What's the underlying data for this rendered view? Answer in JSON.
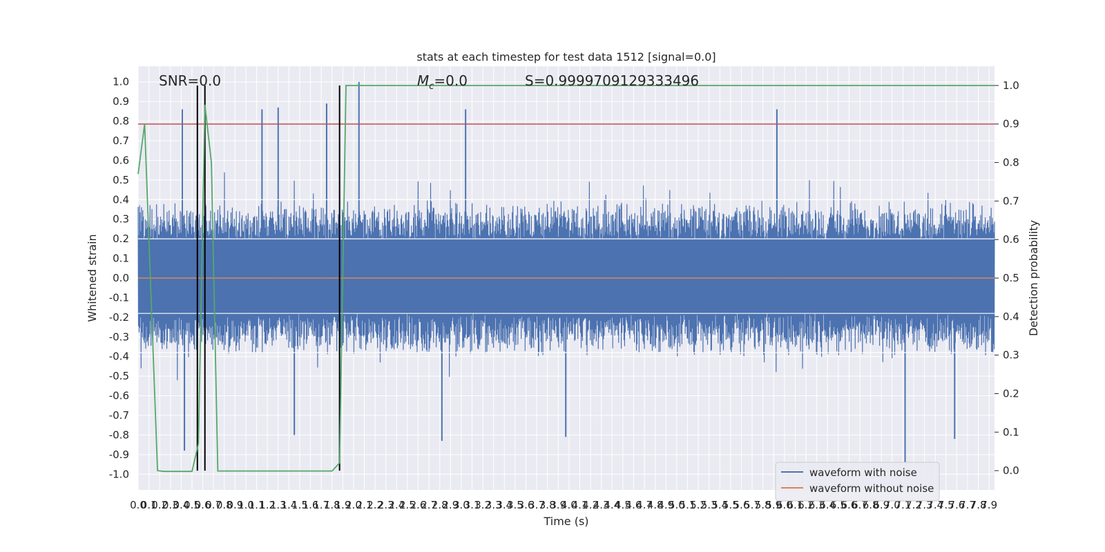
{
  "chart_data": {
    "type": "line",
    "title": "stats at each timestep for test data 1512 [signal=0.0]",
    "xlabel": "Time (s)",
    "ylabel": "Whitened strain",
    "ylabel_right": "Detection probability",
    "xlim": [
      0.0,
      7.95
    ],
    "ylim": [
      -1.08,
      1.08
    ],
    "ylim_right": [
      -0.05,
      1.05
    ],
    "grid": true,
    "legend_placement": "lower right",
    "x_ticks": [
      "0.0",
      "0.1",
      "0.2",
      "0.3",
      "0.4",
      "0.5",
      "0.6",
      "0.7",
      "0.8",
      "0.9",
      "1.0",
      "1.1",
      "1.2",
      "1.3",
      "1.4",
      "1.5",
      "1.6",
      "1.7",
      "1.8",
      "1.9",
      "2.0",
      "2.1",
      "2.2",
      "2.3",
      "2.4",
      "2.5",
      "2.6",
      "2.7",
      "2.8",
      "2.9",
      "3.0",
      "3.1",
      "3.2",
      "3.3",
      "3.4",
      "3.5",
      "3.6",
      "3.7",
      "3.8",
      "3.9",
      "4.0",
      "4.1",
      "4.2",
      "4.3",
      "4.4",
      "4.5",
      "4.6",
      "4.7",
      "4.8",
      "4.9",
      "5.0",
      "5.1",
      "5.2",
      "5.3",
      "5.4",
      "5.5",
      "5.6",
      "5.7",
      "5.8",
      "5.9",
      "6.0",
      "6.1",
      "6.2",
      "6.3",
      "6.4",
      "6.5",
      "6.6",
      "6.7",
      "6.8",
      "6.9",
      "7.0",
      "7.1",
      "7.2",
      "7.3",
      "7.4",
      "7.5",
      "7.6",
      "7.7",
      "7.8",
      "7.9"
    ],
    "y_ticks": [
      "1.0",
      "0.9",
      "0.8",
      "0.7",
      "0.6",
      "0.5",
      "0.4",
      "0.3",
      "0.2",
      "0.1",
      "0.0",
      "-0.1",
      "-0.2",
      "-0.3",
      "-0.4",
      "-0.5",
      "-0.6",
      "-0.7",
      "-0.8",
      "-0.9",
      "-1.0"
    ],
    "y_ticks_right": [
      "1.0",
      "0.9",
      "0.8",
      "0.7",
      "0.6",
      "0.5",
      "0.4",
      "0.3",
      "0.2",
      "0.1",
      "0.0"
    ],
    "annotations": {
      "snr": "SNR=0.0",
      "mc_symbol": "M",
      "mc_subscript": "c",
      "mc_value": "=0.0",
      "score": "S=0.9999709129333496"
    },
    "series": [
      {
        "name": "waveform with noise",
        "color": "#4c72b0",
        "axis": "left",
        "style": "dense noise, envelope approximately ±0.4 with spikes",
        "spikes": [
          {
            "x": 0.41,
            "y": 0.86
          },
          {
            "x": 1.15,
            "y": 0.86
          },
          {
            "x": 1.3,
            "y": 0.87
          },
          {
            "x": 1.75,
            "y": 0.89
          },
          {
            "x": 2.05,
            "y": 1.0
          },
          {
            "x": 3.04,
            "y": 0.86
          },
          {
            "x": 5.93,
            "y": 0.86
          },
          {
            "x": 0.43,
            "y": -0.88
          },
          {
            "x": 1.45,
            "y": -0.8
          },
          {
            "x": 2.82,
            "y": -0.83
          },
          {
            "x": 3.97,
            "y": -0.81
          },
          {
            "x": 7.12,
            "y": -0.94
          },
          {
            "x": 7.58,
            "y": -0.82
          }
        ]
      },
      {
        "name": "waveform without noise",
        "color": "#dd8452",
        "axis": "left",
        "x": [
          0.0,
          7.95
        ],
        "y": [
          0.0,
          0.0
        ]
      },
      {
        "color": "#55a868",
        "axis": "right",
        "x": [
          0.0,
          0.06,
          0.18,
          0.24,
          0.5,
          0.56,
          0.62,
          0.68,
          0.74,
          1.25,
          1.8,
          1.87,
          1.93,
          7.95
        ],
        "y": [
          0.77,
          0.9,
          0.0,
          -0.002,
          -0.002,
          0.07,
          0.95,
          0.8,
          -0.001,
          -0.001,
          -0.001,
          0.02,
          1.0,
          1.0
        ]
      }
    ],
    "threshold": {
      "axis": "right",
      "y": 0.9,
      "color": "#c44e52"
    },
    "vertical_markers": {
      "x": [
        0.55,
        0.62,
        1.87
      ],
      "y_range": [
        0.0,
        1.0
      ],
      "color": "#000000"
    },
    "legend": [
      {
        "label": "waveform with noise",
        "color": "#4c72b0"
      },
      {
        "label": "waveform without noise",
        "color": "#dd8452"
      }
    ]
  }
}
